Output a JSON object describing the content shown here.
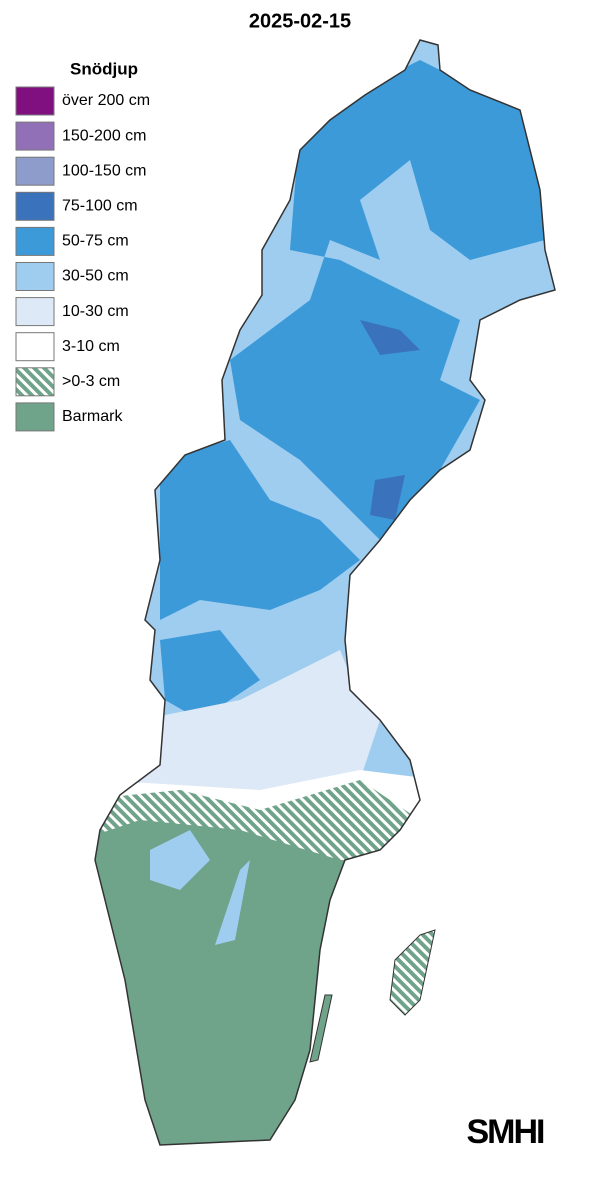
{
  "title": "2025-02-15",
  "legend": {
    "title": "Snödjup",
    "items": [
      {
        "label": "över 200 cm",
        "color": "#800f80"
      },
      {
        "label": "150-200 cm",
        "color": "#9270b8"
      },
      {
        "label": "100-150 cm",
        "color": "#8e9ccb"
      },
      {
        "label": "75-100 cm",
        "color": "#3a72bb"
      },
      {
        "label": "50-75 cm",
        "color": "#3d9ad9"
      },
      {
        "label": "30-50 cm",
        "color": "#9fcdf0"
      },
      {
        "label": "10-30 cm",
        "color": "#dde9f6"
      },
      {
        "label": "3-10 cm",
        "color": "#ffffff"
      },
      {
        "label": ">0-3 cm",
        "color": "#6fa48a",
        "hatch": true
      },
      {
        "label": "Barmark",
        "color": "#6fa48a"
      }
    ]
  },
  "logo": "SMHI"
}
